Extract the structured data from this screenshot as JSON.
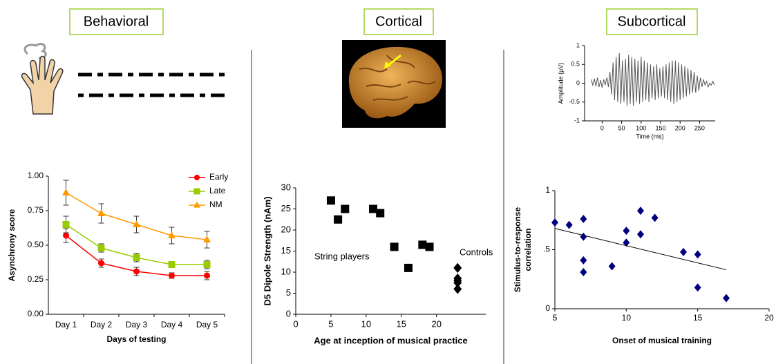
{
  "sections": [
    "Behavioral",
    "Cortical",
    "Subcortical"
  ],
  "chart_data": [
    {
      "type": "line",
      "categories": [
        "Day 1",
        "Day 2",
        "Day 3",
        "Day 4",
        "Day 5"
      ],
      "series": [
        {
          "name": "Early",
          "color": "#ff0000",
          "marker": "circle",
          "values": [
            0.57,
            0.37,
            0.31,
            0.28,
            0.28
          ],
          "errors": [
            0.05,
            0.03,
            0.03,
            0.02,
            0.03
          ]
        },
        {
          "name": "Late",
          "color": "#99cc00",
          "marker": "square",
          "values": [
            0.65,
            0.48,
            0.41,
            0.36,
            0.36
          ],
          "errors": [
            0.06,
            0.03,
            0.03,
            0.02,
            0.03
          ]
        },
        {
          "name": "NM",
          "color": "#ff9900",
          "marker": "triangle",
          "values": [
            0.88,
            0.73,
            0.65,
            0.57,
            0.54
          ],
          "errors": [
            0.09,
            0.07,
            0.06,
            0.06,
            0.06
          ]
        }
      ],
      "ylim": [
        0,
        1
      ],
      "yticks": [
        {
          "value": 0,
          "label": "0.00"
        },
        {
          "value": 0.25,
          "label": "0.25"
        },
        {
          "value": 0.5,
          "label": "0.50"
        },
        {
          "value": 0.75,
          "label": "0.75"
        },
        {
          "value": 1,
          "label": "1.00"
        }
      ],
      "xlabel": "Days of testing",
      "ylabel": [
        "Asynchrony score"
      ],
      "legend": "top-right"
    },
    {
      "type": "scatter",
      "series": [
        {
          "name": "String players",
          "color": "#000000",
          "marker": "square",
          "x": [
            5,
            6,
            7,
            11,
            12,
            14,
            16,
            18,
            19
          ],
          "values": [
            27,
            22.5,
            25,
            25,
            24,
            16,
            11,
            16.5,
            16
          ]
        },
        {
          "name": "Controls",
          "color": "#000000",
          "marker": "diamond",
          "x": [
            23,
            23,
            23,
            23,
            23
          ],
          "values": [
            11,
            8.5,
            7.5,
            6,
            8
          ]
        }
      ],
      "xlim": [
        0,
        27
      ],
      "xticks": [
        0,
        5,
        10,
        15,
        20
      ],
      "ylim": [
        0,
        30
      ],
      "yticks": [
        0,
        5,
        10,
        15,
        20,
        25,
        30
      ],
      "xlabel": "Age at inception of musical practice",
      "ylabel": [
        "D5 Dipole Strength (nAm)"
      ]
    },
    {
      "type": "line",
      "x": [
        -28,
        -24,
        -20,
        -16,
        -12,
        -8,
        -4,
        0,
        4,
        8,
        12,
        16,
        20,
        24,
        28,
        32,
        36,
        40,
        44,
        48,
        52,
        56,
        60,
        64,
        68,
        72,
        76,
        80,
        84,
        88,
        92,
        96,
        100,
        104,
        108,
        112,
        116,
        120,
        124,
        128,
        132,
        136,
        140,
        144,
        148,
        152,
        156,
        160,
        164,
        168,
        172,
        176,
        180,
        184,
        188,
        192,
        196,
        200,
        204,
        208,
        212,
        216,
        220,
        224,
        228,
        232,
        236,
        240,
        244,
        248,
        252,
        256,
        260,
        264,
        268,
        272,
        276,
        280,
        284,
        288
      ],
      "series": [
        {
          "color": "#555555",
          "values": [
            0.1,
            -0.05,
            0.12,
            -0.08,
            0.15,
            -0.1,
            0.08,
            -0.12,
            0.1,
            -0.05,
            0.15,
            -0.1,
            0.3,
            -0.3,
            0.55,
            -0.45,
            0.7,
            -0.5,
            0.8,
            -0.55,
            0.6,
            -0.5,
            0.65,
            -0.6,
            0.75,
            -0.55,
            0.7,
            -0.6,
            0.65,
            -0.5,
            0.6,
            -0.55,
            0.7,
            -0.5,
            0.6,
            -0.45,
            0.55,
            -0.5,
            0.5,
            -0.4,
            0.45,
            -0.45,
            0.5,
            -0.4,
            0.4,
            -0.35,
            0.45,
            -0.4,
            0.5,
            -0.45,
            0.55,
            -0.5,
            0.6,
            -0.55,
            0.6,
            -0.5,
            0.55,
            -0.45,
            0.5,
            -0.4,
            0.45,
            -0.35,
            0.4,
            -0.3,
            0.35,
            -0.25,
            0.3,
            -0.25,
            0.2,
            -0.2,
            0.15,
            -0.1,
            0.1,
            -0.05,
            0.05,
            -0.1,
            0.0,
            -0.05,
            0.05,
            -0.05
          ]
        }
      ],
      "xlim": [
        -45,
        290
      ],
      "xticks": [
        0,
        50,
        100,
        150,
        200,
        250
      ],
      "ylim": [
        -1,
        1
      ],
      "yticks": [
        -1,
        -0.5,
        0,
        0.5,
        1
      ],
      "xlabel": "Time (ms)",
      "ylabel": [
        "Amplitude (µV)"
      ]
    },
    {
      "type": "scatter",
      "series": [
        {
          "color": "#000080",
          "marker": "diamond",
          "x": [
            5,
            6,
            7,
            7,
            7,
            7,
            9,
            10,
            10,
            11,
            11,
            12,
            14,
            15,
            15,
            17
          ],
          "values": [
            0.73,
            0.71,
            0.76,
            0.61,
            0.41,
            0.31,
            0.36,
            0.66,
            0.56,
            0.83,
            0.63,
            0.77,
            0.48,
            0.46,
            0.18,
            0.09
          ]
        }
      ],
      "fit": {
        "x": [
          5,
          17
        ],
        "values": [
          0.68,
          0.33
        ]
      },
      "xlim": [
        5,
        20
      ],
      "xticks": [
        5,
        10,
        15,
        20
      ],
      "ylim": [
        0,
        1
      ],
      "yticks": [
        0,
        {
          "value": 0.5,
          "label": ".5"
        },
        1
      ],
      "xlabel": "Onset of musical training",
      "ylabel": [
        "Stimulus-to-response",
        "correlation"
      ]
    }
  ]
}
